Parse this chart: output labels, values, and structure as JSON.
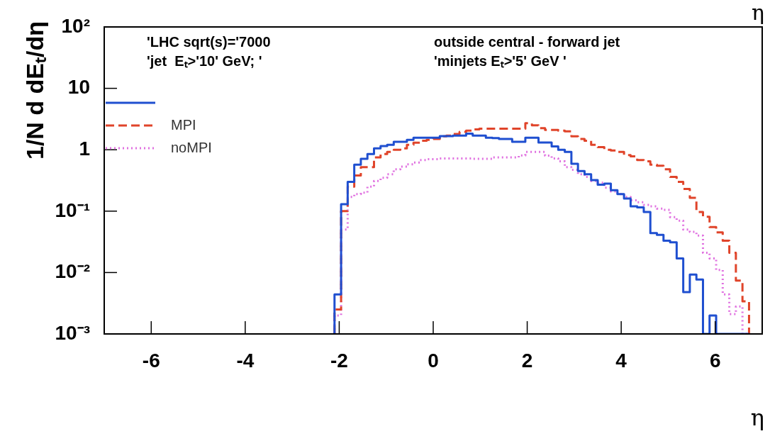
{
  "chart_data": {
    "type": "histogram",
    "xlabel": "η",
    "ylabel": "1/N d dEₜ/dη",
    "annotations": [
      "'LHC sqrt(s)='7000",
      "'jet  Eₜ>'10' GeV; '",
      "outside central - forward jet",
      "'minjets Eₜ>'5' GeV '",
      "η"
    ],
    "bins": [
      -2.1,
      -1.96,
      -1.82,
      -1.68,
      -1.54,
      -1.4,
      -1.26,
      -1.12,
      -0.98,
      -0.84,
      -0.7,
      -0.56,
      -0.42,
      -0.28,
      -0.14,
      0,
      0.14,
      0.28,
      0.42,
      0.56,
      0.7,
      0.84,
      0.98,
      1.12,
      1.26,
      1.4,
      1.54,
      1.68,
      1.82,
      1.96,
      2.1,
      2.24,
      2.38,
      2.52,
      2.66,
      2.8,
      2.94,
      3.08,
      3.22,
      3.36,
      3.5,
      3.64,
      3.78,
      3.92,
      4.06,
      4.2,
      4.34,
      4.48,
      4.62,
      4.76,
      4.9,
      5.04,
      5.18,
      5.32,
      5.46,
      5.6,
      5.74,
      5.88,
      6.02,
      6.16,
      6.3,
      6.44,
      6.58,
      6.72
    ],
    "series": [
      {
        "color": "#1f4fd0",
        "line_style": "solid",
        "values": [
          0.0044,
          0.13,
          0.3,
          0.57,
          0.71,
          0.85,
          1.05,
          1.15,
          1.2,
          1.35,
          1.35,
          1.45,
          1.57,
          1.57,
          1.57,
          1.57,
          1.67,
          1.67,
          1.7,
          1.7,
          1.83,
          1.7,
          1.7,
          1.57,
          1.55,
          1.5,
          1.5,
          1.35,
          1.35,
          1.57,
          1.57,
          1.31,
          1.31,
          1.13,
          1.0,
          0.92,
          0.59,
          0.45,
          0.4,
          0.32,
          0.27,
          0.28,
          0.22,
          0.19,
          0.16,
          0.12,
          0.115,
          0.097,
          0.044,
          0.041,
          0.033,
          0.031,
          0.017,
          0.0048,
          0.0093,
          0.0077,
          null,
          0.002,
          null,
          null,
          null,
          null,
          null
        ]
      },
      {
        "name": "MPI",
        "color": "#e0442a",
        "line_style": "dashed",
        "values": [
          0.0025,
          0.1,
          0.25,
          0.38,
          0.52,
          0.52,
          0.75,
          0.85,
          0.92,
          1.0,
          1.05,
          1.2,
          1.3,
          1.4,
          1.45,
          1.5,
          1.65,
          1.7,
          1.8,
          1.95,
          2.05,
          2.15,
          2.2,
          2.2,
          2.2,
          2.2,
          2.2,
          2.2,
          2.2,
          2.7,
          2.5,
          2.25,
          2.1,
          2.1,
          2.05,
          2.0,
          1.65,
          1.5,
          1.4,
          1.2,
          1.1,
          1.0,
          0.97,
          0.92,
          0.82,
          0.78,
          0.68,
          0.65,
          0.57,
          0.55,
          0.48,
          0.36,
          0.3,
          0.23,
          0.165,
          0.097,
          0.081,
          0.055,
          0.045,
          0.033,
          0.021,
          0.0074,
          0.0034
        ]
      },
      {
        "name": "noMPI",
        "color": "#e070e0",
        "line_style": "dotted",
        "values": [
          0.002,
          0.05,
          0.17,
          0.19,
          0.2,
          0.25,
          0.31,
          0.35,
          0.4,
          0.48,
          0.53,
          0.58,
          0.62,
          0.68,
          0.7,
          0.7,
          0.72,
          0.72,
          0.72,
          0.72,
          0.72,
          0.71,
          0.71,
          0.71,
          0.75,
          0.75,
          0.75,
          0.75,
          0.81,
          0.92,
          0.92,
          0.92,
          0.8,
          0.72,
          0.65,
          0.52,
          0.47,
          0.4,
          0.36,
          0.31,
          0.29,
          0.24,
          0.21,
          0.19,
          0.17,
          0.15,
          0.14,
          0.126,
          0.12,
          0.11,
          0.105,
          0.08,
          0.07,
          0.05,
          0.046,
          0.04,
          0.021,
          0.017,
          0.011,
          0.0044,
          0.0021,
          0.0028,
          null
        ]
      }
    ],
    "xlim": [
      -7,
      7
    ],
    "xticks": [
      -6,
      -4,
      -2,
      0,
      2,
      4,
      6
    ],
    "ylim": [
      0.001,
      100
    ],
    "log": true,
    "yticks": [
      {
        "value": 100,
        "label": "10²"
      },
      10,
      1,
      {
        "value": 0.1,
        "label": "10⁻¹"
      },
      {
        "value": 0.01,
        "label": "10⁻²"
      },
      {
        "value": 0.001,
        "label": "10⁻³"
      }
    ],
    "legend": "top left",
    "grid": false
  }
}
